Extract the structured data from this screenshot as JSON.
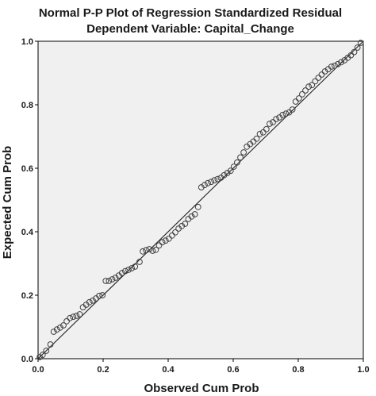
{
  "chart_data": {
    "type": "scatter",
    "title": "Normal P-P Plot of Regression Standardized Residual",
    "subtitle": "Dependent Variable: Capital_Change",
    "xlabel": "Observed Cum Prob",
    "ylabel": "Expected Cum Prob",
    "xlim": [
      0.0,
      1.0
    ],
    "ylim": [
      0.0,
      1.0
    ],
    "xticks": [
      "0.0",
      "0.2",
      "0.4",
      "0.6",
      "0.8",
      "1.0"
    ],
    "yticks": [
      "0.0",
      "0.2",
      "0.4",
      "0.6",
      "0.8",
      "1.0"
    ],
    "grid": false,
    "legend": "none",
    "reference_line": {
      "from": [
        0.0,
        0.0
      ],
      "to": [
        1.0,
        1.0
      ]
    },
    "colors": {
      "plot_background": "#f0f0f0",
      "marker_stroke": "#404040",
      "line": "#202020"
    },
    "series": [
      {
        "x": [
          0.005,
          0.014,
          0.025,
          0.038,
          0.048,
          0.058,
          0.068,
          0.078,
          0.088,
          0.098,
          0.108,
          0.118,
          0.128,
          0.138,
          0.148,
          0.158,
          0.168,
          0.178,
          0.188,
          0.198,
          0.208,
          0.218,
          0.228,
          0.238,
          0.248,
          0.258,
          0.268,
          0.278,
          0.288,
          0.298,
          0.312,
          0.322,
          0.332,
          0.342,
          0.352,
          0.362,
          0.372,
          0.382,
          0.392,
          0.402,
          0.412,
          0.422,
          0.432,
          0.442,
          0.452,
          0.462,
          0.472,
          0.482,
          0.492,
          0.502,
          0.512,
          0.522,
          0.532,
          0.542,
          0.552,
          0.562,
          0.572,
          0.582,
          0.592,
          0.602,
          0.612,
          0.622,
          0.632,
          0.642,
          0.652,
          0.662,
          0.672,
          0.682,
          0.692,
          0.702,
          0.712,
          0.722,
          0.732,
          0.742,
          0.752,
          0.762,
          0.772,
          0.782,
          0.792,
          0.802,
          0.812,
          0.822,
          0.832,
          0.842,
          0.852,
          0.862,
          0.872,
          0.882,
          0.892,
          0.902,
          0.912,
          0.922,
          0.932,
          0.942,
          0.952,
          0.962,
          0.972,
          0.982,
          0.992
        ],
        "values": [
          0.005,
          0.012,
          0.025,
          0.045,
          0.085,
          0.092,
          0.098,
          0.105,
          0.118,
          0.128,
          0.132,
          0.135,
          0.14,
          0.162,
          0.17,
          0.178,
          0.183,
          0.19,
          0.198,
          0.2,
          0.245,
          0.245,
          0.25,
          0.255,
          0.262,
          0.27,
          0.276,
          0.28,
          0.285,
          0.29,
          0.305,
          0.338,
          0.342,
          0.345,
          0.34,
          0.343,
          0.357,
          0.367,
          0.372,
          0.378,
          0.388,
          0.398,
          0.41,
          0.418,
          0.425,
          0.44,
          0.448,
          0.455,
          0.478,
          0.54,
          0.547,
          0.553,
          0.557,
          0.562,
          0.566,
          0.57,
          0.578,
          0.585,
          0.592,
          0.605,
          0.618,
          0.634,
          0.65,
          0.668,
          0.676,
          0.684,
          0.693,
          0.708,
          0.713,
          0.723,
          0.74,
          0.745,
          0.755,
          0.76,
          0.768,
          0.772,
          0.776,
          0.785,
          0.81,
          0.82,
          0.833,
          0.845,
          0.857,
          0.862,
          0.874,
          0.885,
          0.895,
          0.905,
          0.912,
          0.92,
          0.923,
          0.928,
          0.934,
          0.94,
          0.948,
          0.956,
          0.966,
          0.98,
          0.995
        ]
      }
    ]
  }
}
